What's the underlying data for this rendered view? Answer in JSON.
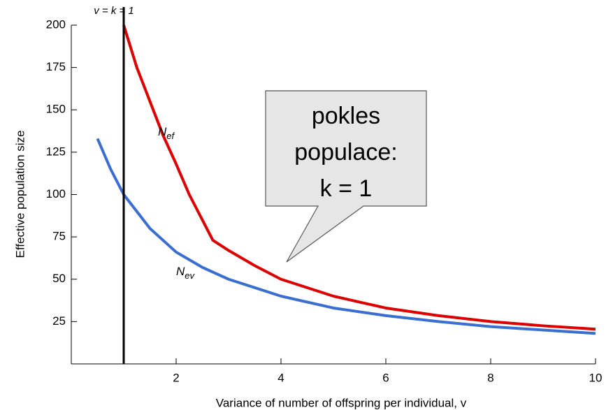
{
  "chart_data": {
    "type": "line",
    "xlabel": "Variance of number of offspring per individual, v",
    "ylabel": "Effective population size",
    "xlim": [
      0,
      10
    ],
    "ylim": [
      0,
      200
    ],
    "xticks": [
      2,
      4,
      6,
      8,
      10
    ],
    "yticks": [
      25,
      50,
      75,
      100,
      125,
      150,
      175,
      200
    ],
    "series": [
      {
        "color": "#dd0000",
        "x": [
          1,
          1.25,
          1.5,
          1.75,
          2,
          2.25,
          2.5,
          2.7,
          3,
          3.5,
          4,
          5,
          6,
          7,
          8,
          9,
          10
        ],
        "values": [
          200,
          175,
          155,
          135,
          118,
          100,
          85,
          73,
          67,
          58,
          50,
          40,
          33,
          28.5,
          25,
          22.5,
          20.5
        ]
      },
      {
        "color": "#3a6fd0",
        "x": [
          0.5,
          0.75,
          1,
          1.5,
          2,
          2.5,
          3,
          4,
          5,
          6,
          7,
          8,
          9,
          10
        ],
        "values": [
          133,
          115,
          100,
          80,
          66,
          57,
          50,
          40,
          33,
          28.5,
          25,
          22,
          20,
          18
        ]
      }
    ],
    "vline": {
      "x": 1,
      "label": "v = k = 1"
    },
    "annotations": [
      {
        "base": "N",
        "sub": "ef"
      },
      {
        "base": "N",
        "sub": "ev"
      }
    ],
    "callout": [
      "pokles",
      "populace:",
      "k = 1"
    ]
  }
}
